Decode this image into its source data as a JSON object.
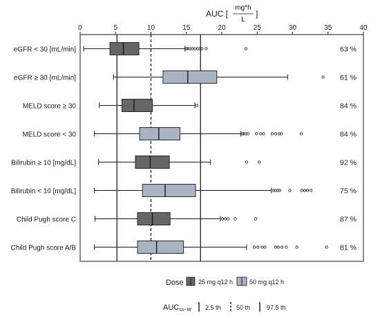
{
  "chart_data": {
    "type": "boxplot",
    "title": {
      "prefix": "AUC [",
      "num": "mg*h",
      "den": "L",
      "suffix": "]"
    },
    "xlim": [
      0,
      40
    ],
    "xticks": [
      0,
      5,
      10,
      15,
      20,
      25,
      30,
      35,
      40
    ],
    "reference_lines": [
      {
        "name": "2.5 th",
        "value": 5.2,
        "style": "solid"
      },
      {
        "name": "50 th",
        "value": 10.0,
        "style": "dashed"
      },
      {
        "name": "97.5 th",
        "value": 17.0,
        "style": "solid"
      }
    ],
    "groups": [
      {
        "label": "eGFR < 30 [mL/min]",
        "dose": "25 mg q12 h",
        "whisker_low": 0.5,
        "q1": 4.2,
        "median": 6.1,
        "q3": 8.3,
        "whisker_high": 14.8,
        "outliers": [
          15.0,
          15.2,
          15.5,
          15.8,
          16.2,
          16.6,
          16.9,
          17.2,
          17.8,
          23.4
        ],
        "percent": "63 %"
      },
      {
        "label": "eGFR ≥ 30 [mL/min]",
        "dose": "50 mg q12 h",
        "whisker_low": 4.7,
        "q1": 11.7,
        "median": 15.2,
        "q3": 19.3,
        "whisker_high": 29.3,
        "outliers": [
          34.3
        ],
        "percent": "61 %"
      },
      {
        "label": "MELD score ≥ 30",
        "dose": "25 mg q12 h",
        "whisker_low": 2.7,
        "q1": 5.9,
        "median": 7.6,
        "q3": 10.2,
        "whisker_high": 16.2,
        "outliers": [
          16.5
        ],
        "percent": "84 %"
      },
      {
        "label": "MELD score < 30",
        "dose": "50 mg q12 h",
        "whisker_low": 2.0,
        "q1": 8.4,
        "median": 11.1,
        "q3": 14.1,
        "whisker_high": 22.7,
        "outliers": [
          22.9,
          23.1,
          23.4,
          23.7,
          24.9,
          25.5,
          25.9,
          27.1,
          27.6,
          28.1,
          28.4,
          31.2
        ],
        "percent": "84 %"
      },
      {
        "label": "Bilirubin ≥ 10 [mg/dL]",
        "dose": "25 mg q12 h",
        "whisker_low": 2.6,
        "q1": 7.8,
        "median": 9.9,
        "q3": 12.6,
        "whisker_high": 18.4,
        "outliers": [
          23.5,
          25.3
        ],
        "percent": "92 %"
      },
      {
        "label": "Bilirubin < 10 [mg/dL]",
        "dose": "50 mg q12 h",
        "whisker_low": 2.0,
        "q1": 8.8,
        "median": 12.0,
        "q3": 16.3,
        "whisker_high": 27.0,
        "outliers": [
          27.3,
          27.6,
          27.9,
          28.2,
          29.6,
          31.3,
          31.7,
          32.1,
          32.6
        ],
        "percent": "75 %"
      },
      {
        "label": "Child Pugh score C",
        "dose": "25 mg q12 h",
        "whisker_low": 2.1,
        "q1": 8.1,
        "median": 10.2,
        "q3": 12.7,
        "whisker_high": 19.8,
        "outliers": [
          20.1,
          20.5,
          20.9,
          21.9,
          24.8
        ],
        "percent": "87 %"
      },
      {
        "label": "Child Pugh score A/B",
        "dose": "50 mg q12 h",
        "whisker_low": 2.0,
        "q1": 8.1,
        "median": 10.8,
        "q3": 14.6,
        "whisker_high": 23.5,
        "outliers": [
          24.6,
          25.1,
          25.7,
          26.1,
          27.6,
          28.0,
          28.5,
          29.1,
          30.6,
          34.8
        ],
        "percent": "81 %"
      }
    ],
    "legend": {
      "dose_title": "Dose",
      "dose_items": [
        {
          "name": "25 mg q12 h",
          "color": "#666666"
        },
        {
          "name": "50 mg q12 h",
          "color": "#a9b3c1"
        }
      ],
      "auc_title": "AUC",
      "auc_subscript": "ss−W",
      "auc_items": [
        {
          "name": "2.5 th",
          "style": "solid"
        },
        {
          "name": "50 th",
          "style": "dashed"
        },
        {
          "name": "97.5 th",
          "style": "solid"
        }
      ]
    },
    "colors": {
      "box_25mg": "#666666",
      "box_50mg": "#a9b3c1",
      "line": "#1a1a1a"
    }
  }
}
